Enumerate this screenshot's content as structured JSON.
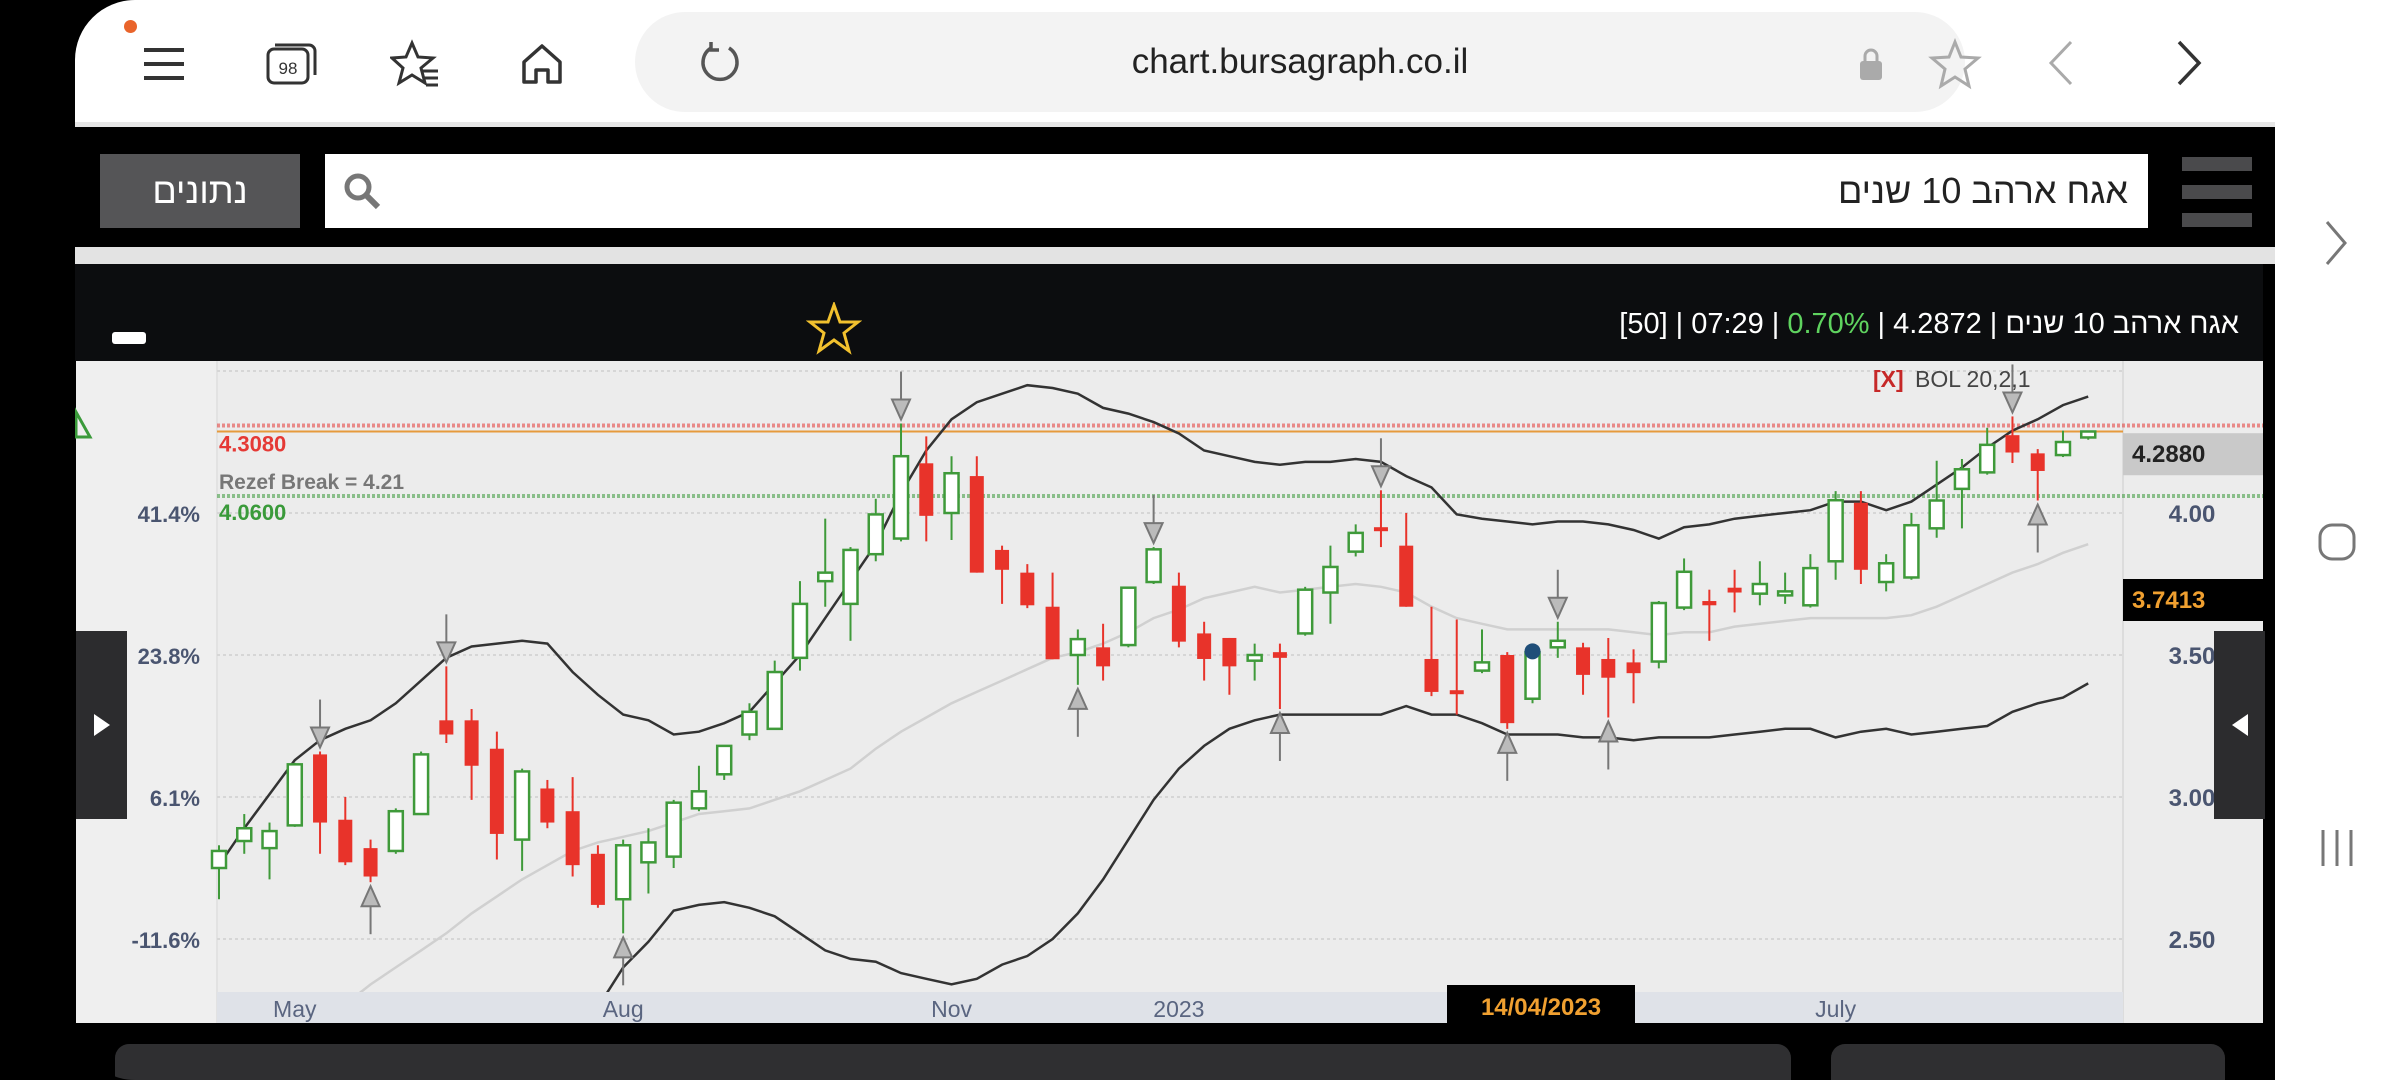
{
  "browser": {
    "url": "chart.bursagraph.co.il",
    "tab_count": "98",
    "icons": [
      "menu-icon",
      "tabs-icon",
      "bookmarks-icon",
      "home-icon",
      "reload-icon",
      "lock-icon",
      "star-icon",
      "back-icon",
      "forward-icon"
    ]
  },
  "header": {
    "data_button": "נתונים",
    "search_value": "אגח ארהב 10 שנים"
  },
  "titlebar": {
    "instrument": "אגח ארהב 10 שנים",
    "price": "4.2872",
    "change": "0.70%",
    "time": "07:29",
    "count": "[50]",
    "separator": "|",
    "change_color": "#5fd35f"
  },
  "chart_data": {
    "type": "candlestick",
    "indicator_label": "BOL 20,2,1",
    "indicator_remove": "[X]",
    "ylim": [
      2.2,
      4.52
    ],
    "y_ticks": [
      {
        "value": 4.0,
        "label": "4.00"
      },
      {
        "value": 3.5,
        "label": "3.50"
      },
      {
        "value": 3.0,
        "label": "3.00"
      },
      {
        "value": 2.5,
        "label": "2.50"
      }
    ],
    "pct_ticks": [
      {
        "value": 4.0,
        "label": "41.4%"
      },
      {
        "value": 3.5,
        "label": "23.8%"
      },
      {
        "value": 3.0,
        "label": "6.1%"
      },
      {
        "value": 2.5,
        "label": "-11.6%"
      }
    ],
    "x_ticks": [
      {
        "index": 3,
        "label": "May"
      },
      {
        "index": 16,
        "label": "Aug"
      },
      {
        "index": 29,
        "label": "Nov"
      },
      {
        "index": 38,
        "label": "2023"
      },
      {
        "index": 64,
        "label": "July"
      }
    ],
    "levels": [
      {
        "value": 4.308,
        "label": "4.3080",
        "color": "#e53935"
      },
      {
        "value": 4.06,
        "label": "4.0600",
        "color": "#3a9a3a"
      }
    ],
    "rezef_break": "Rezef Break = 4.21",
    "last_price": {
      "value": 4.288,
      "label": "4.2880"
    },
    "crosshair": {
      "value": 3.7413,
      "label": "3.7413",
      "date": "14/04/2023",
      "index": 52
    },
    "colors": {
      "up": "#3f9a3a",
      "down": "#e8332a",
      "band": "#333333",
      "middle": "#d0d0d0"
    },
    "candles_ohlc": [
      [
        2.75,
        2.83,
        2.64,
        2.81
      ],
      [
        2.845,
        2.94,
        2.8,
        2.89
      ],
      [
        2.82,
        2.91,
        2.71,
        2.88
      ],
      [
        2.9,
        3.12,
        2.895,
        3.115
      ],
      [
        3.15,
        3.16,
        2.8,
        2.91
      ],
      [
        2.92,
        3.0,
        2.76,
        2.77
      ],
      [
        2.82,
        2.85,
        2.7,
        2.72
      ],
      [
        2.81,
        2.96,
        2.8,
        2.95
      ],
      [
        2.94,
        3.16,
        2.94,
        3.15
      ],
      [
        3.27,
        3.46,
        3.19,
        3.22
      ],
      [
        3.27,
        3.31,
        2.99,
        3.11
      ],
      [
        3.17,
        3.23,
        2.78,
        2.87
      ],
      [
        2.85,
        3.1,
        2.74,
        3.09
      ],
      [
        3.03,
        3.06,
        2.89,
        2.91
      ],
      [
        2.95,
        3.07,
        2.72,
        2.76
      ],
      [
        2.8,
        2.83,
        2.61,
        2.62
      ],
      [
        2.64,
        2.85,
        2.52,
        2.83
      ],
      [
        2.77,
        2.89,
        2.66,
        2.84
      ],
      [
        2.79,
        2.99,
        2.75,
        2.98
      ],
      [
        2.96,
        3.11,
        2.95,
        3.02
      ],
      [
        3.08,
        3.18,
        3.06,
        3.18
      ],
      [
        3.22,
        3.33,
        3.2,
        3.3
      ],
      [
        3.24,
        3.48,
        3.24,
        3.44
      ],
      [
        3.49,
        3.76,
        3.445,
        3.68
      ],
      [
        3.76,
        3.98,
        3.67,
        3.79
      ],
      [
        3.68,
        3.88,
        3.55,
        3.87
      ],
      [
        3.855,
        4.05,
        3.83,
        3.995
      ],
      [
        3.91,
        4.315,
        3.9,
        4.2
      ],
      [
        4.175,
        4.27,
        3.9,
        3.99
      ],
      [
        4.0,
        4.2,
        3.905,
        4.14
      ],
      [
        4.13,
        4.2,
        3.79,
        3.79
      ],
      [
        3.87,
        3.885,
        3.68,
        3.8
      ],
      [
        3.79,
        3.82,
        3.665,
        3.675
      ],
      [
        3.67,
        3.79,
        3.485,
        3.485
      ],
      [
        3.5,
        3.59,
        3.395,
        3.556
      ],
      [
        3.527,
        3.61,
        3.41,
        3.46
      ],
      [
        3.535,
        3.74,
        3.527,
        3.737
      ],
      [
        3.757,
        3.88,
        3.75,
        3.872
      ],
      [
        3.744,
        3.79,
        3.527,
        3.547
      ],
      [
        3.576,
        3.617,
        3.41,
        3.486
      ],
      [
        3.56,
        3.56,
        3.36,
        3.46
      ],
      [
        3.48,
        3.54,
        3.41,
        3.5
      ],
      [
        3.51,
        3.54,
        3.31,
        3.49
      ],
      [
        3.576,
        3.74,
        3.568,
        3.73
      ],
      [
        3.72,
        3.885,
        3.61,
        3.81
      ],
      [
        3.864,
        3.96,
        3.847,
        3.93
      ],
      [
        3.95,
        4.08,
        3.88,
        3.94
      ],
      [
        3.885,
        4.0,
        3.67,
        3.67
      ],
      [
        3.486,
        3.67,
        3.355,
        3.37
      ],
      [
        3.376,
        3.625,
        3.29,
        3.366
      ],
      [
        3.445,
        3.59,
        3.436,
        3.474
      ],
      [
        3.5,
        3.51,
        3.24,
        3.26
      ],
      [
        3.346,
        3.527,
        3.33,
        3.51
      ],
      [
        3.527,
        3.617,
        3.49,
        3.55
      ],
      [
        3.527,
        3.543,
        3.36,
        3.43
      ],
      [
        3.486,
        3.56,
        3.28,
        3.42
      ],
      [
        3.474,
        3.52,
        3.33,
        3.436
      ],
      [
        3.477,
        3.69,
        3.453,
        3.683
      ],
      [
        3.667,
        3.84,
        3.658,
        3.793
      ],
      [
        3.69,
        3.73,
        3.55,
        3.675
      ],
      [
        3.737,
        3.8,
        3.65,
        3.72
      ],
      [
        3.716,
        3.83,
        3.675,
        3.75
      ],
      [
        3.714,
        3.79,
        3.68,
        3.724
      ],
      [
        3.675,
        3.855,
        3.667,
        3.806
      ],
      [
        3.83,
        4.077,
        3.765,
        4.045
      ],
      [
        4.036,
        4.077,
        3.75,
        3.8
      ],
      [
        3.757,
        3.855,
        3.724,
        3.823
      ],
      [
        3.773,
        4.0,
        3.765,
        3.957
      ],
      [
        3.946,
        4.184,
        3.913,
        4.044
      ],
      [
        4.085,
        4.19,
        3.946,
        4.154
      ],
      [
        4.143,
        4.3,
        4.135,
        4.24
      ],
      [
        4.274,
        4.34,
        4.176,
        4.213
      ],
      [
        4.21,
        4.225,
        4.044,
        4.148
      ],
      [
        4.204,
        4.29,
        4.197,
        4.25
      ],
      [
        4.266,
        4.29,
        4.258,
        4.287
      ]
    ],
    "upper_band": [
      2.76,
      2.89,
      3.01,
      3.13,
      3.2,
      3.24,
      3.27,
      3.33,
      3.41,
      3.49,
      3.53,
      3.54,
      3.55,
      3.54,
      3.44,
      3.36,
      3.29,
      3.27,
      3.22,
      3.23,
      3.26,
      3.3,
      3.4,
      3.5,
      3.63,
      3.76,
      3.89,
      4.07,
      4.22,
      4.33,
      4.39,
      4.42,
      4.45,
      4.44,
      4.42,
      4.37,
      4.35,
      4.32,
      4.28,
      4.22,
      4.2,
      4.18,
      4.17,
      4.18,
      4.18,
      4.19,
      4.18,
      4.13,
      4.09,
      3.995,
      3.98,
      3.97,
      3.96,
      3.97,
      3.97,
      3.96,
      3.94,
      3.91,
      3.95,
      3.96,
      3.98,
      3.99,
      4.0,
      4.01,
      4.04,
      4.04,
      4.01,
      4.04,
      4.1,
      4.16,
      4.23,
      4.29,
      4.33,
      4.38,
      4.41
    ],
    "middle_band": [
      null,
      null,
      null,
      null,
      2.2,
      2.27,
      2.34,
      2.4,
      2.46,
      2.52,
      2.59,
      2.65,
      2.71,
      2.76,
      2.81,
      2.84,
      2.86,
      2.88,
      2.91,
      2.94,
      2.95,
      2.96,
      2.99,
      3.02,
      3.06,
      3.1,
      3.17,
      3.23,
      3.28,
      3.33,
      3.37,
      3.41,
      3.45,
      3.49,
      3.51,
      3.54,
      3.58,
      3.63,
      3.66,
      3.7,
      3.72,
      3.74,
      3.72,
      3.73,
      3.74,
      3.75,
      3.74,
      3.72,
      3.67,
      3.63,
      3.61,
      3.59,
      3.59,
      3.59,
      3.59,
      3.59,
      3.58,
      3.57,
      3.58,
      3.58,
      3.6,
      3.61,
      3.62,
      3.63,
      3.63,
      3.63,
      3.63,
      3.64,
      3.67,
      3.71,
      3.75,
      3.79,
      3.82,
      3.86,
      3.89
    ],
    "lower_band": [
      null,
      null,
      null,
      null,
      null,
      null,
      null,
      null,
      null,
      null,
      null,
      null,
      null,
      null,
      2.17,
      2.26,
      2.4,
      2.49,
      2.6,
      2.62,
      2.63,
      2.61,
      2.58,
      2.52,
      2.46,
      2.43,
      2.42,
      2.38,
      2.36,
      2.34,
      2.36,
      2.41,
      2.44,
      2.5,
      2.59,
      2.71,
      2.85,
      2.99,
      3.1,
      3.18,
      3.24,
      3.27,
      3.29,
      3.29,
      3.29,
      3.29,
      3.29,
      3.32,
      3.29,
      3.29,
      3.26,
      3.22,
      3.22,
      3.22,
      3.21,
      3.21,
      3.2,
      3.21,
      3.21,
      3.21,
      3.22,
      3.23,
      3.24,
      3.24,
      3.21,
      3.23,
      3.24,
      3.22,
      3.23,
      3.24,
      3.25,
      3.3,
      3.33,
      3.35,
      3.4
    ],
    "sell_signals": [
      4,
      9,
      27,
      37,
      46,
      53,
      71
    ],
    "buy_signals": [
      6,
      16,
      34,
      42,
      51,
      55,
      72
    ]
  }
}
